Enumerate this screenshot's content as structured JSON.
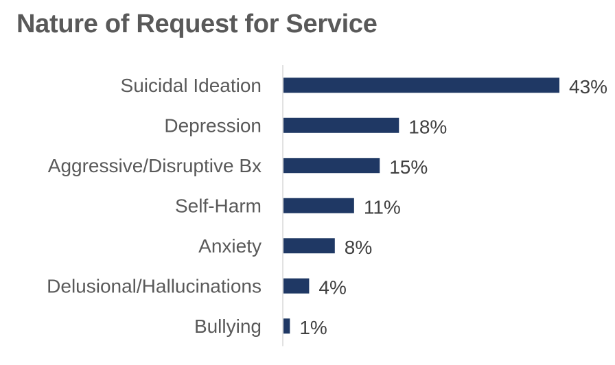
{
  "chart_data": {
    "type": "bar",
    "orientation": "horizontal",
    "title": "Nature of Request for Service",
    "categories": [
      "Suicidal Ideation",
      "Depression",
      "Aggressive/Disruptive Bx",
      "Self-Harm",
      "Anxiety",
      "Delusional/Hallucinations",
      "Bullying"
    ],
    "values": [
      43,
      18,
      15,
      11,
      8,
      4,
      1
    ],
    "value_labels": [
      "43%",
      "18%",
      "15%",
      "11%",
      "8%",
      "4%",
      "1%"
    ],
    "unit": "%",
    "xlim": [
      0,
      43
    ],
    "grid": false,
    "legend": "none",
    "bar_color": "#1f3864",
    "axis_color": "#d9d9d9"
  }
}
